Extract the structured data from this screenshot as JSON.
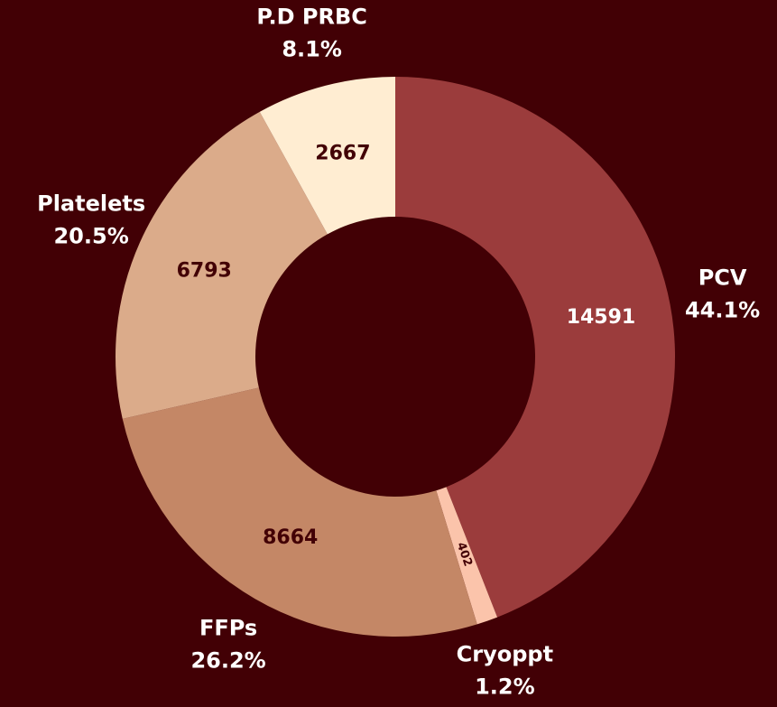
{
  "chart_data": {
    "type": "donut",
    "categories": [
      "PCV",
      "Cryoppt",
      "FFPs",
      "Platelets",
      "P.D PRBC"
    ],
    "values": [
      14591,
      402,
      8664,
      6793,
      2667
    ],
    "percent_labels": [
      "44.1%",
      "1.2%",
      "26.2%",
      "20.5%",
      "8.1%"
    ],
    "colors": [
      "#9b3c3c",
      "#fbc4ab",
      "#c48766",
      "#dbab8a",
      "#ffedd2"
    ],
    "value_label_colors": [
      "#ffffff",
      "#420005",
      "#420005",
      "#420005",
      "#420005"
    ]
  }
}
